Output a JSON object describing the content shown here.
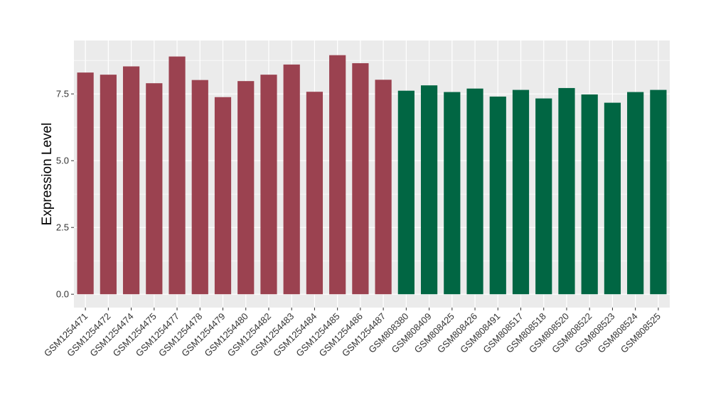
{
  "chart_data": {
    "type": "bar",
    "ylabel": "Expression Level",
    "xlabel": "",
    "ylim": [
      -0.5,
      9.5
    ],
    "y_ticks": [
      0.0,
      2.5,
      5.0,
      7.5
    ],
    "y_tick_labels": [
      "0.0",
      "2.5",
      "5.0",
      "7.5"
    ],
    "grid": true,
    "legend": "none",
    "categories": [
      "GSM1254471",
      "GSM1254472",
      "GSM1254474",
      "GSM1254475",
      "GSM1254477",
      "GSM1254478",
      "GSM1254479",
      "GSM1254480",
      "GSM1254482",
      "GSM1254483",
      "GSM1254484",
      "GSM1254485",
      "GSM1254486",
      "GSM1254487",
      "GSM808380",
      "GSM808409",
      "GSM808425",
      "GSM808426",
      "GSM808491",
      "GSM808517",
      "GSM808518",
      "GSM808520",
      "GSM808522",
      "GSM808523",
      "GSM808524",
      "GSM808525"
    ],
    "values": [
      8.3,
      8.22,
      8.53,
      7.9,
      8.9,
      8.02,
      7.38,
      7.98,
      8.22,
      8.6,
      7.58,
      8.95,
      8.65,
      8.03,
      7.62,
      7.82,
      7.57,
      7.7,
      7.4,
      7.65,
      7.33,
      7.72,
      7.48,
      7.17,
      7.57,
      7.65
    ],
    "bar_colors": [
      "#9b4250",
      "#9b4250",
      "#9b4250",
      "#9b4250",
      "#9b4250",
      "#9b4250",
      "#9b4250",
      "#9b4250",
      "#9b4250",
      "#9b4250",
      "#9b4250",
      "#9b4250",
      "#9b4250",
      "#9b4250",
      "#016643",
      "#016643",
      "#016643",
      "#016643",
      "#016643",
      "#016643",
      "#016643",
      "#016643",
      "#016643",
      "#016643",
      "#016643",
      "#016643"
    ],
    "panel_background": "#ebebeb",
    "grid_color": "#ffffff"
  }
}
